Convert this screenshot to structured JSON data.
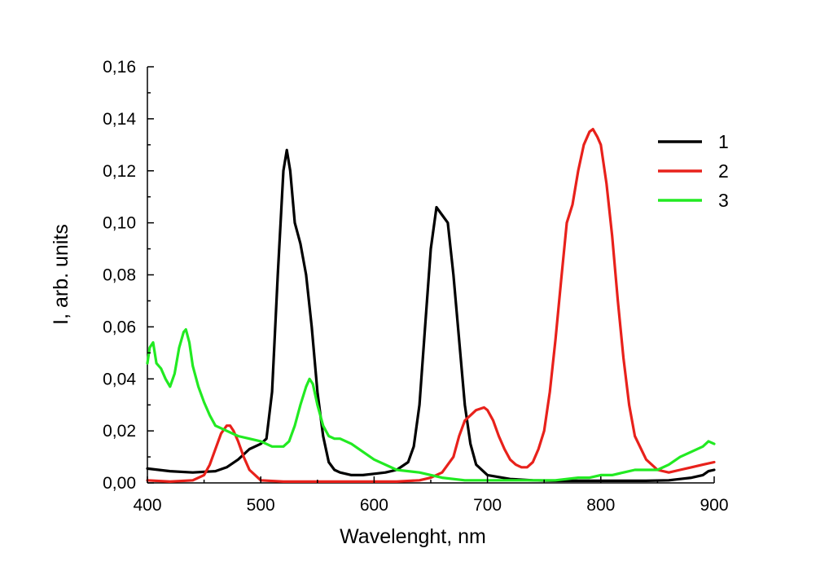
{
  "chart_data": {
    "type": "line",
    "title": "",
    "xlabel": "Wavelenght, nm",
    "ylabel": "I, arb. units",
    "xlim": [
      400,
      900
    ],
    "ylim": [
      0,
      0.16
    ],
    "xticks": [
      400,
      500,
      600,
      700,
      800,
      900
    ],
    "xtick_labels": [
      "400",
      "500",
      "600",
      "700",
      "800",
      "900"
    ],
    "yticks": [
      0,
      0.02,
      0.04,
      0.06,
      0.08,
      0.1,
      0.12,
      0.14,
      0.16
    ],
    "ytick_labels": [
      "0,00",
      "0,02",
      "0,04",
      "0,06",
      "0,08",
      "0,10",
      "0,12",
      "0,14",
      "0,16"
    ],
    "grid": false,
    "legend_position": "top-right",
    "series": [
      {
        "name": "1",
        "color": "#000000",
        "x": [
          400,
          420,
          440,
          460,
          470,
          480,
          490,
          500,
          505,
          510,
          515,
          520,
          523,
          526,
          530,
          535,
          540,
          545,
          550,
          555,
          560,
          565,
          570,
          580,
          590,
          600,
          610,
          620,
          630,
          635,
          640,
          645,
          650,
          655,
          660,
          665,
          670,
          675,
          680,
          685,
          690,
          700,
          720,
          740,
          760,
          780,
          800,
          820,
          840,
          860,
          870,
          880,
          890,
          895,
          900
        ],
        "y": [
          0.0055,
          0.0045,
          0.004,
          0.0045,
          0.006,
          0.009,
          0.013,
          0.015,
          0.017,
          0.035,
          0.08,
          0.12,
          0.128,
          0.12,
          0.1,
          0.092,
          0.08,
          0.06,
          0.035,
          0.018,
          0.008,
          0.005,
          0.004,
          0.003,
          0.003,
          0.0035,
          0.004,
          0.005,
          0.008,
          0.014,
          0.03,
          0.06,
          0.09,
          0.106,
          0.103,
          0.1,
          0.08,
          0.055,
          0.03,
          0.015,
          0.007,
          0.003,
          0.0015,
          0.001,
          0.0008,
          0.0008,
          0.0008,
          0.0008,
          0.0008,
          0.001,
          0.0015,
          0.002,
          0.003,
          0.0045,
          0.005
        ]
      },
      {
        "name": "2",
        "color": "#e8211b",
        "x": [
          400,
          420,
          440,
          450,
          455,
          460,
          465,
          470,
          473,
          476,
          480,
          485,
          490,
          500,
          520,
          540,
          560,
          580,
          600,
          620,
          640,
          650,
          660,
          670,
          675,
          680,
          690,
          697,
          700,
          705,
          710,
          715,
          720,
          725,
          730,
          735,
          740,
          745,
          750,
          755,
          760,
          765,
          770,
          775,
          780,
          785,
          790,
          793,
          797,
          800,
          805,
          810,
          815,
          820,
          825,
          830,
          840,
          850,
          860,
          870,
          880,
          890,
          900
        ],
        "y": [
          0.001,
          0.0005,
          0.001,
          0.003,
          0.007,
          0.013,
          0.019,
          0.022,
          0.022,
          0.02,
          0.016,
          0.01,
          0.005,
          0.001,
          0.0005,
          0.0005,
          0.0005,
          0.0005,
          0.0005,
          0.0005,
          0.001,
          0.002,
          0.004,
          0.01,
          0.018,
          0.024,
          0.028,
          0.029,
          0.028,
          0.024,
          0.018,
          0.013,
          0.009,
          0.007,
          0.006,
          0.006,
          0.008,
          0.013,
          0.02,
          0.035,
          0.055,
          0.078,
          0.1,
          0.107,
          0.12,
          0.13,
          0.135,
          0.136,
          0.133,
          0.13,
          0.115,
          0.095,
          0.07,
          0.048,
          0.03,
          0.018,
          0.009,
          0.005,
          0.004,
          0.005,
          0.006,
          0.007,
          0.008
        ]
      },
      {
        "name": "3",
        "color": "#22ea22",
        "x": [
          400,
          402,
          405,
          408,
          412,
          416,
          420,
          424,
          428,
          432,
          434,
          437,
          440,
          445,
          450,
          455,
          460,
          470,
          480,
          490,
          500,
          510,
          520,
          525,
          530,
          535,
          540,
          543,
          546,
          550,
          555,
          560,
          565,
          570,
          580,
          590,
          600,
          620,
          640,
          660,
          680,
          700,
          720,
          740,
          760,
          780,
          790,
          800,
          810,
          820,
          830,
          840,
          850,
          860,
          870,
          880,
          890,
          895,
          900
        ],
        "y": [
          0.046,
          0.052,
          0.054,
          0.046,
          0.044,
          0.04,
          0.037,
          0.042,
          0.052,
          0.058,
          0.059,
          0.054,
          0.045,
          0.037,
          0.031,
          0.026,
          0.022,
          0.02,
          0.018,
          0.017,
          0.016,
          0.014,
          0.014,
          0.016,
          0.022,
          0.03,
          0.037,
          0.04,
          0.038,
          0.03,
          0.022,
          0.018,
          0.017,
          0.017,
          0.015,
          0.012,
          0.009,
          0.005,
          0.004,
          0.002,
          0.001,
          0.001,
          0.001,
          0.001,
          0.001,
          0.002,
          0.002,
          0.003,
          0.003,
          0.004,
          0.005,
          0.005,
          0.005,
          0.007,
          0.01,
          0.012,
          0.014,
          0.016,
          0.015
        ]
      }
    ]
  }
}
